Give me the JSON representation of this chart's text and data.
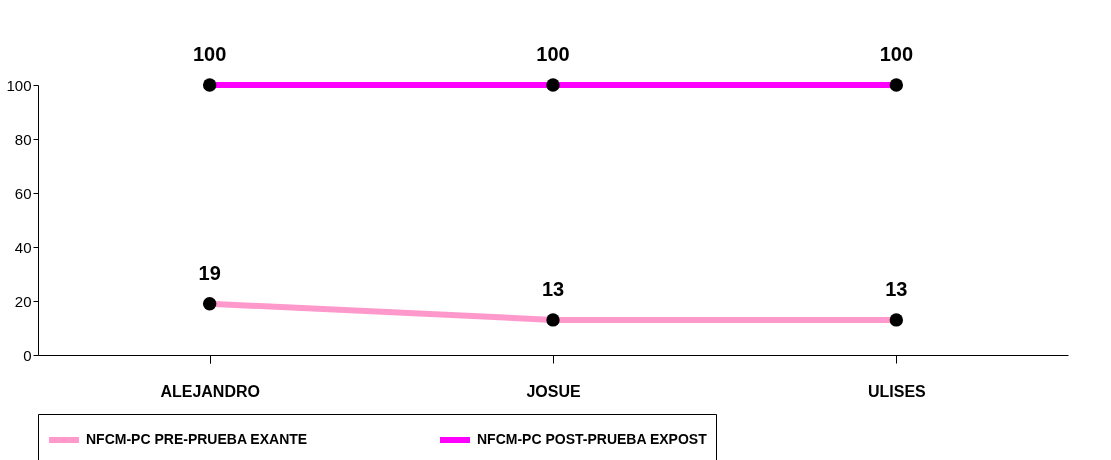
{
  "chart_data": {
    "type": "line",
    "categories": [
      "ALEJANDRO",
      "JOSUE",
      "ULISES"
    ],
    "series": [
      {
        "name": "NFCM-PC PRE-PRUEBA EXANTE",
        "color": "#ff99cc",
        "values": [
          19,
          13,
          13
        ]
      },
      {
        "name": "NFCM-PC POST-PRUEBA EXPOST",
        "color": "#ff00ff",
        "values": [
          100,
          100,
          100
        ]
      }
    ],
    "ylim": [
      0,
      100
    ],
    "yticks": [
      0,
      20,
      40,
      60,
      80,
      100
    ],
    "grid": false,
    "legend": "bottom",
    "marker": "circle",
    "line_style": "solid",
    "data_labels": true
  }
}
